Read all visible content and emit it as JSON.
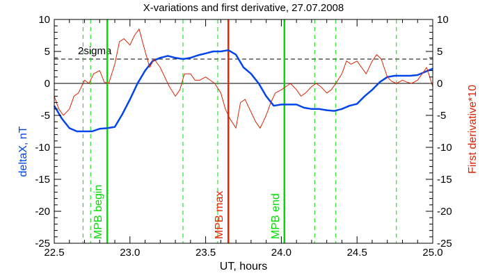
{
  "chart_data": {
    "type": "line",
    "title": "X-variations and first derivative, 27.07.2008",
    "xlabel": "UT, hours",
    "ylabel_left": "deltaX, nT",
    "ylabel_right": "First derivative*10",
    "xlim": [
      22.5,
      25.0
    ],
    "ylim": [
      -25,
      10
    ],
    "x_ticks": [
      "22.5",
      "23.0",
      "23.5",
      "24.0",
      "24.5",
      "25.0"
    ],
    "y_ticks": [
      "10",
      "5",
      "0",
      "-5",
      "-10",
      "-15",
      "-20",
      "-25"
    ],
    "zero_line": 0,
    "sigma_line": {
      "label": "2sigma",
      "value": 3.8
    },
    "colors": {
      "deltaX": "#0044ee",
      "derivative": "#dd2200",
      "mpb_marker": "#00dd00",
      "mpb_max": "#ee2200",
      "dashed_marker": "#00dd00"
    },
    "markers": [
      {
        "label": "MPB begin",
        "x": 22.85
      },
      {
        "label": "MPB max",
        "x": 23.65
      },
      {
        "label": "MPB end",
        "x": 24.02
      }
    ],
    "dashed_markers": [
      22.69,
      22.74,
      23.35,
      23.58,
      24.22,
      24.36,
      24.76
    ],
    "series": [
      {
        "axis": "left",
        "x": [
          22.5,
          22.55,
          22.6,
          22.65,
          22.7,
          22.75,
          22.8,
          22.85,
          22.9,
          22.95,
          23.0,
          23.05,
          23.1,
          23.15,
          23.2,
          23.25,
          23.3,
          23.35,
          23.4,
          23.45,
          23.5,
          23.55,
          23.6,
          23.65,
          23.7,
          23.75,
          23.8,
          23.85,
          23.9,
          23.95,
          24.0,
          24.05,
          24.1,
          24.15,
          24.2,
          24.25,
          24.3,
          24.35,
          24.4,
          24.45,
          24.5,
          24.55,
          24.6,
          24.65,
          24.7,
          24.75,
          24.8,
          24.85,
          24.9,
          24.95,
          25.0
        ],
        "values": [
          -3.5,
          -5.5,
          -7.0,
          -7.5,
          -7.5,
          -7.5,
          -7.1,
          -7.0,
          -6.8,
          -4.8,
          -2.5,
          0.0,
          2.0,
          3.5,
          4.0,
          4.3,
          4.0,
          3.8,
          4.0,
          4.4,
          4.7,
          5.0,
          5.0,
          5.2,
          4.5,
          2.5,
          1.5,
          0.0,
          -2.0,
          -3.5,
          -3.3,
          -3.3,
          -3.3,
          -3.8,
          -4.0,
          -4.0,
          -4.2,
          -4.3,
          -4.0,
          -3.5,
          -3.2,
          -2.0,
          -1.0,
          0.2,
          1.0,
          1.2,
          1.2,
          1.2,
          1.3,
          1.8,
          2.3
        ]
      },
      {
        "axis": "right",
        "x": [
          22.5,
          22.53,
          22.56,
          22.6,
          22.63,
          22.66,
          22.7,
          22.73,
          22.76,
          22.8,
          22.83,
          22.86,
          22.9,
          22.93,
          22.96,
          23.0,
          23.03,
          23.06,
          23.1,
          23.13,
          23.16,
          23.2,
          23.23,
          23.26,
          23.3,
          23.33,
          23.36,
          23.4,
          23.43,
          23.46,
          23.5,
          23.53,
          23.56,
          23.6,
          23.63,
          23.66,
          23.7,
          23.73,
          23.76,
          23.8,
          23.83,
          23.86,
          23.9,
          23.93,
          23.96,
          24.0,
          24.03,
          24.06,
          24.1,
          24.13,
          24.16,
          24.2,
          24.23,
          24.26,
          24.3,
          24.33,
          24.36,
          24.4,
          24.43,
          24.46,
          24.5,
          24.53,
          24.56,
          24.6,
          24.63,
          24.66,
          24.7,
          24.73,
          24.76,
          24.8,
          24.83,
          24.86,
          24.9,
          24.93,
          24.96,
          25.0
        ],
        "values": [
          -2.0,
          -4.0,
          -5.0,
          -4.0,
          -2.0,
          -1.5,
          0.5,
          0.0,
          1.5,
          2.0,
          0.2,
          0.0,
          3.0,
          6.5,
          7.0,
          6.0,
          7.5,
          8.5,
          5.0,
          2.5,
          3.8,
          2.5,
          1.0,
          -0.5,
          -2.0,
          -1.0,
          1.5,
          1.5,
          0.5,
          0.5,
          1.0,
          0.5,
          0.0,
          -1.5,
          -4.0,
          -5.5,
          -7.0,
          -3.0,
          -2.5,
          -4.5,
          -6.0,
          -7.0,
          -5.0,
          -3.0,
          -1.5,
          -1.0,
          -0.5,
          0.0,
          -1.0,
          -2.0,
          -1.5,
          -0.5,
          0.0,
          -0.5,
          -1.5,
          -1.0,
          0.0,
          1.5,
          3.5,
          3.0,
          3.5,
          2.5,
          1.5,
          3.5,
          4.5,
          3.8,
          1.0,
          0.3,
          0.0,
          0.5,
          0.2,
          0.0,
          0.5,
          1.5,
          2.5,
          -0.5
        ]
      }
    ],
    "sigma_label": "2sigma"
  }
}
